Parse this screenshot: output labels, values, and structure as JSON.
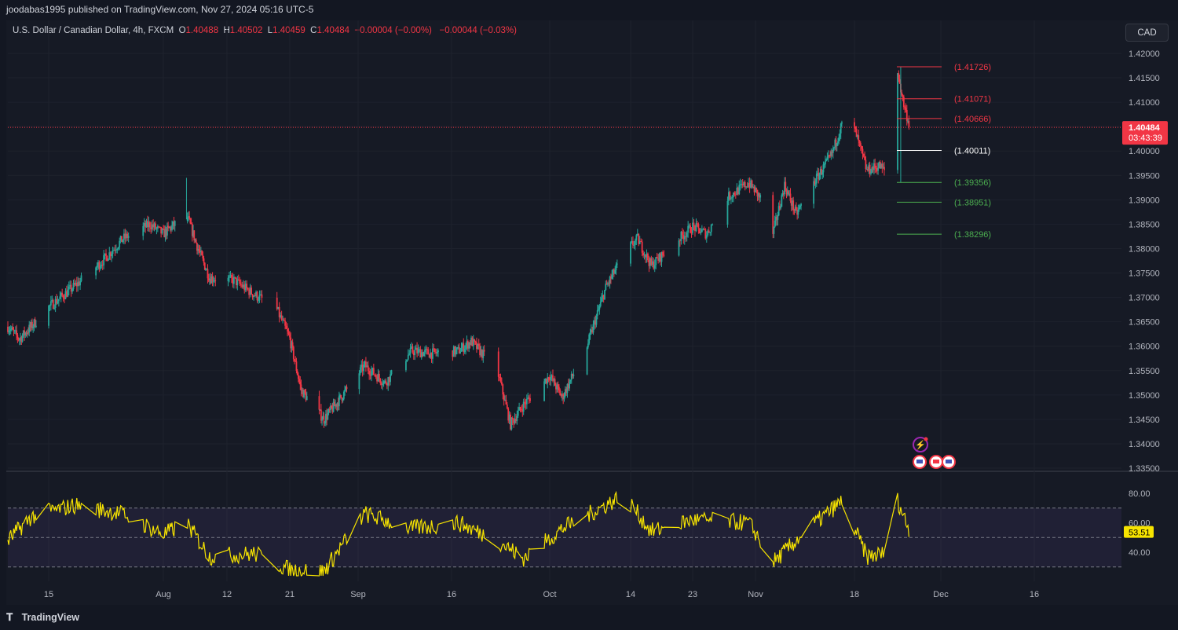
{
  "publisher_line": "joodabas1995 published on TradingView.com, Nov 27, 2024 05:16 UTC-5",
  "header": {
    "symbol": "U.S. Dollar / Canadian Dollar, 4h, FXCM",
    "o_label": "O",
    "o_value": "1.40488",
    "h_label": "H",
    "h_value": "1.40502",
    "l_label": "L",
    "l_value": "1.40459",
    "c_label": "C",
    "c_value": "1.40484",
    "change": "−0.00004 (−0.00%)",
    "change2": "−0.00044 (−0.03%)"
  },
  "currency_button": "CAD",
  "price_axis": {
    "ticks": [
      "1.42000",
      "1.41500",
      "1.41000",
      "1.40500",
      "1.40000",
      "1.39500",
      "1.39000",
      "1.38500",
      "1.38000",
      "1.37500",
      "1.37000",
      "1.36500",
      "1.36000",
      "1.35500",
      "1.35000",
      "1.34500",
      "1.34000",
      "1.33500"
    ],
    "current_price": "1.40484",
    "countdown": "03:43:39"
  },
  "time_axis": [
    "15",
    "Aug",
    "12",
    "21",
    "Sep",
    "16",
    "Oct",
    "14",
    "23",
    "Nov",
    "18",
    "Dec",
    "16"
  ],
  "levels": [
    {
      "label": "(1.41726)",
      "value": 1.41726,
      "color": "#f23645"
    },
    {
      "label": "(1.41071)",
      "value": 1.41071,
      "color": "#f23645"
    },
    {
      "label": "(1.40666)",
      "value": 1.40666,
      "color": "#f23645"
    },
    {
      "label": "(1.40011)",
      "value": 1.40011,
      "color": "#ffffff"
    },
    {
      "label": "(1.39356)",
      "value": 1.39356,
      "color": "#4caf50"
    },
    {
      "label": "(1.38951)",
      "value": 1.38951,
      "color": "#4caf50"
    },
    {
      "label": "(1.38296)",
      "value": 1.38296,
      "color": "#4caf50"
    }
  ],
  "rsi": {
    "ticks": [
      "80.00",
      "60.00",
      "40.00"
    ],
    "current": "53.51",
    "upper_band": 70,
    "middle_band": 50,
    "lower_band": 30,
    "line_color": "#f7e400"
  },
  "colors": {
    "up": "#26a69a",
    "down": "#f23645",
    "background": "#131722",
    "pane": "#161a25"
  },
  "footer_brand": "TradingView",
  "icons": [
    "flash-event-icon",
    "us-flag-icon",
    "canada-flag-icon",
    "us-flag-icon"
  ],
  "chart_data": {
    "type": "candlestick",
    "title": "U.S. Dollar / Canadian Dollar, 4h, FXCM",
    "ylim": [
      1.333,
      1.422
    ],
    "price_path": [
      {
        "x": "Jul 8",
        "y": 1.364
      },
      {
        "x": "Jul 10",
        "y": 1.3615
      },
      {
        "x": "Jul 12",
        "y": 1.364
      },
      {
        "x": "Jul 15",
        "y": 1.368
      },
      {
        "x": "Jul 19",
        "y": 1.3725
      },
      {
        "x": "Jul 23",
        "y": 1.3775
      },
      {
        "x": "Jul 26",
        "y": 1.382
      },
      {
        "x": "Jul 30",
        "y": 1.385
      },
      {
        "x": "Aug 1",
        "y": 1.383
      },
      {
        "x": "Aug 5",
        "y": 1.387
      },
      {
        "x": "Aug 7",
        "y": 1.38
      },
      {
        "x": "Aug 9",
        "y": 1.374
      },
      {
        "x": "Aug 13",
        "y": 1.3735
      },
      {
        "x": "Aug 16",
        "y": 1.3705
      },
      {
        "x": "Aug 19",
        "y": 1.368
      },
      {
        "x": "Aug 21",
        "y": 1.3615
      },
      {
        "x": "Aug 23",
        "y": 1.351
      },
      {
        "x": "Aug 27",
        "y": 1.345
      },
      {
        "x": "Aug 30",
        "y": 1.3495
      },
      {
        "x": "Sep 3",
        "y": 1.356
      },
      {
        "x": "Sep 6",
        "y": 1.3525
      },
      {
        "x": "Sep 10",
        "y": 1.359
      },
      {
        "x": "Sep 13",
        "y": 1.3585
      },
      {
        "x": "Sep 17",
        "y": 1.359
      },
      {
        "x": "Sep 19",
        "y": 1.361
      },
      {
        "x": "Sep 23",
        "y": 1.355
      },
      {
        "x": "Sep 25",
        "y": 1.344
      },
      {
        "x": "Sep 27",
        "y": 1.348
      },
      {
        "x": "Oct 1",
        "y": 1.354
      },
      {
        "x": "Oct 3",
        "y": 1.3495
      },
      {
        "x": "Oct 7",
        "y": 1.36
      },
      {
        "x": "Oct 10",
        "y": 1.372
      },
      {
        "x": "Oct 13",
        "y": 1.379
      },
      {
        "x": "Oct 15",
        "y": 1.382
      },
      {
        "x": "Oct 17",
        "y": 1.3765
      },
      {
        "x": "Oct 21",
        "y": 1.382
      },
      {
        "x": "Oct 23",
        "y": 1.3845
      },
      {
        "x": "Oct 25",
        "y": 1.383
      },
      {
        "x": "Oct 28",
        "y": 1.3905
      },
      {
        "x": "Oct 31",
        "y": 1.3935
      },
      {
        "x": "Nov 2",
        "y": 1.39
      },
      {
        "x": "Nov 4",
        "y": 1.383
      },
      {
        "x": "Nov 6",
        "y": 1.393
      },
      {
        "x": "Nov 8",
        "y": 1.387
      },
      {
        "x": "Nov 11",
        "y": 1.3935
      },
      {
        "x": "Nov 14",
        "y": 1.399
      },
      {
        "x": "Nov 16",
        "y": 1.406
      },
      {
        "x": "Nov 18",
        "y": 1.4045
      },
      {
        "x": "Nov 20",
        "y": 1.396
      },
      {
        "x": "Nov 22",
        "y": 1.397
      },
      {
        "x": "Nov 24",
        "y": 1.3945
      },
      {
        "x": "Nov 25",
        "y": 1.416
      },
      {
        "x": "Nov 26",
        "y": 1.4095
      },
      {
        "x": "Nov 27",
        "y": 1.40484
      }
    ],
    "rsi_path": [
      {
        "x": "Jul 8",
        "y": 48
      },
      {
        "x": "Jul 12",
        "y": 64
      },
      {
        "x": "Jul 19",
        "y": 72
      },
      {
        "x": "Jul 26",
        "y": 66
      },
      {
        "x": "Aug 1",
        "y": 52
      },
      {
        "x": "Aug 5",
        "y": 60
      },
      {
        "x": "Aug 9",
        "y": 37
      },
      {
        "x": "Aug 16",
        "y": 39
      },
      {
        "x": "Aug 21",
        "y": 28
      },
      {
        "x": "Aug 27",
        "y": 27
      },
      {
        "x": "Sep 3",
        "y": 66
      },
      {
        "x": "Sep 10",
        "y": 56
      },
      {
        "x": "Sep 17",
        "y": 60
      },
      {
        "x": "Sep 23",
        "y": 48
      },
      {
        "x": "Sep 27",
        "y": 36
      },
      {
        "x": "Oct 3",
        "y": 56
      },
      {
        "x": "Oct 7",
        "y": 65
      },
      {
        "x": "Oct 13",
        "y": 79
      },
      {
        "x": "Oct 17",
        "y": 54
      },
      {
        "x": "Oct 23",
        "y": 62
      },
      {
        "x": "Oct 31",
        "y": 60
      },
      {
        "x": "Nov 4",
        "y": 33
      },
      {
        "x": "Nov 11",
        "y": 59
      },
      {
        "x": "Nov 16",
        "y": 75
      },
      {
        "x": "Nov 20",
        "y": 37
      },
      {
        "x": "Nov 24",
        "y": 40
      },
      {
        "x": "Nov 25",
        "y": 75
      },
      {
        "x": "Nov 27",
        "y": 53.51
      }
    ]
  }
}
